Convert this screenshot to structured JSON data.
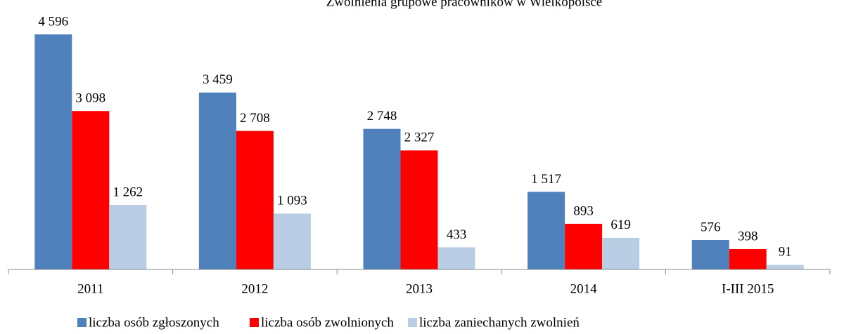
{
  "chart_data": {
    "type": "bar",
    "title": "Zwolnienia grupowe pracowników w Wielkopolsce",
    "categories": [
      "2011",
      "2012",
      "2013",
      "2014",
      "I-III 2015"
    ],
    "series": [
      {
        "name": "liczba osób zgłoszonych",
        "color": "#4f81bd",
        "values": [
          4596,
          3459,
          2748,
          1517,
          576
        ],
        "value_labels": [
          "4 596",
          "3 459",
          "2 748",
          "1 517",
          "576"
        ]
      },
      {
        "name": "liczba osób zwolnionych",
        "color": "#ff0000",
        "values": [
          3098,
          2708,
          2327,
          893,
          398
        ],
        "value_labels": [
          "3 098",
          "2 708",
          "2 327",
          "893",
          "398"
        ]
      },
      {
        "name": "liczba zaniechanych zwolnień",
        "color": "#b9cde5",
        "values": [
          1262,
          1093,
          433,
          619,
          91
        ],
        "value_labels": [
          "1 262",
          "1 093",
          "433",
          "619",
          "91"
        ]
      }
    ],
    "legend": "bottom"
  }
}
